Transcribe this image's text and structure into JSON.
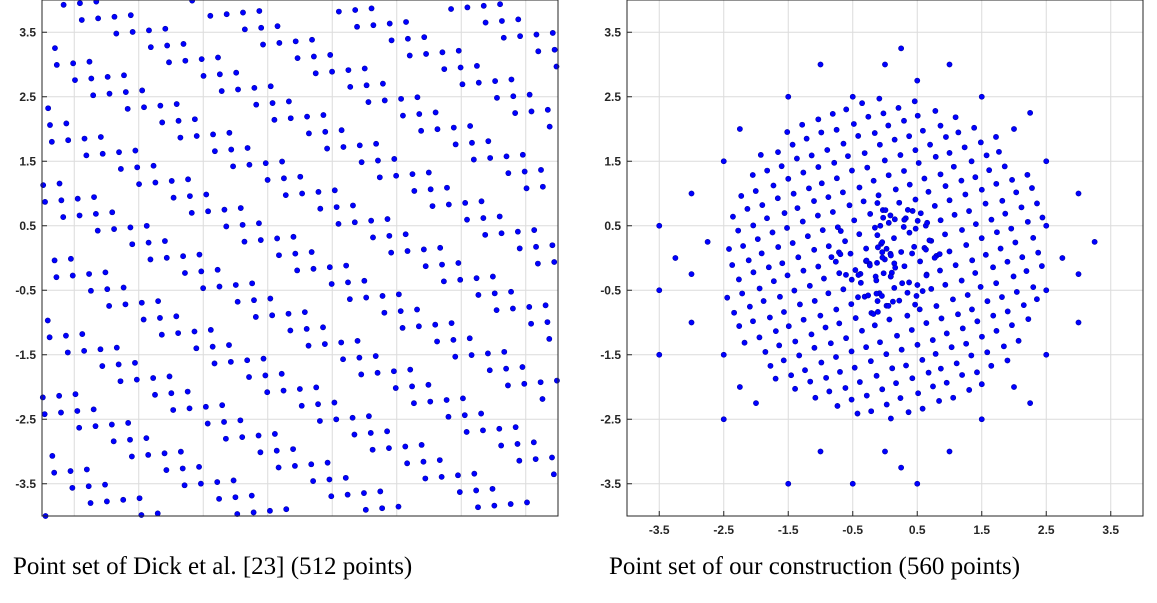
{
  "chart_data": [
    {
      "type": "scatter",
      "caption": "Point set of Dick et al. [23] (512 points)",
      "xlim": [
        -4,
        4
      ],
      "ylim": [
        -4,
        4
      ],
      "xticks": [
        "-3.5",
        "-2.5",
        "-1.5",
        "-0.5",
        "0.5",
        "1.5",
        "2.5",
        "3.5"
      ],
      "yticks": [
        "3.5",
        "2.5",
        "1.5",
        "0.5",
        "-0.5",
        "-1.5",
        "-2.5",
        "-3.5"
      ],
      "xtick_values": [
        -3.5,
        -2.5,
        -1.5,
        -0.5,
        0.5,
        1.5,
        2.5,
        3.5
      ],
      "ytick_values": [
        3.5,
        2.5,
        1.5,
        0.5,
        -0.5,
        -1.5,
        -2.5,
        -3.5
      ],
      "show_xticks": false,
      "grid": true,
      "marker_color": "#0000ff",
      "point_count": 512,
      "points_description": "quasi-uniform lattice filling the square [-4,4]x[-4,4]"
    },
    {
      "type": "scatter",
      "caption": "Point set of our construction (560 points)",
      "xlim": [
        -4,
        4
      ],
      "ylim": [
        -4,
        4
      ],
      "xticks": [
        "-3.5",
        "-2.5",
        "-1.5",
        "-0.5",
        "0.5",
        "1.5",
        "2.5",
        "3.5"
      ],
      "yticks": [
        "3.5",
        "2.5",
        "1.5",
        "0.5",
        "-0.5",
        "-1.5",
        "-2.5",
        "-3.5"
      ],
      "xtick_values": [
        -3.5,
        -2.5,
        -1.5,
        -0.5,
        0.5,
        1.5,
        2.5,
        3.5
      ],
      "ytick_values": [
        3.5,
        2.5,
        1.5,
        0.5,
        -0.5,
        -1.5,
        -2.5,
        -3.5
      ],
      "show_xticks": true,
      "grid": true,
      "marker_color": "#0000ff",
      "point_count": 560,
      "points_description": "points concentrated near the origin, dense core within radius ~2.5 with sparse outliers out to about 3.5",
      "outliers": [
        [
          -3.5,
          0.5
        ],
        [
          -3.5,
          -0.5
        ],
        [
          -3.5,
          -1.5
        ],
        [
          -3.25,
          0.0
        ],
        [
          -3.0,
          1.0
        ],
        [
          -3.0,
          -0.25
        ],
        [
          -3.0,
          -1.0
        ],
        [
          -2.75,
          0.25
        ],
        [
          -2.5,
          1.5
        ],
        [
          -2.5,
          -1.5
        ],
        [
          -2.5,
          -2.5
        ],
        [
          -2.25,
          2.0
        ],
        [
          -2.25,
          -2.0
        ],
        [
          -2.0,
          -2.25
        ],
        [
          -1.5,
          2.5
        ],
        [
          -1.5,
          -3.5
        ],
        [
          -1.0,
          3.0
        ],
        [
          -1.0,
          -3.0
        ],
        [
          -0.5,
          2.5
        ],
        [
          -0.5,
          -3.5
        ],
        [
          0.0,
          3.0
        ],
        [
          0.0,
          -3.0
        ],
        [
          0.25,
          3.25
        ],
        [
          0.25,
          -3.25
        ],
        [
          0.5,
          2.75
        ],
        [
          0.5,
          -3.5
        ],
        [
          1.0,
          3.0
        ],
        [
          1.0,
          -3.0
        ],
        [
          1.5,
          2.5
        ],
        [
          1.5,
          -2.5
        ],
        [
          2.0,
          2.0
        ],
        [
          2.0,
          -2.0
        ],
        [
          2.25,
          2.25
        ],
        [
          2.25,
          -2.25
        ],
        [
          2.5,
          1.5
        ],
        [
          2.5,
          0.5
        ],
        [
          2.5,
          -0.5
        ],
        [
          2.5,
          -1.5
        ],
        [
          2.75,
          0.0
        ],
        [
          3.0,
          1.0
        ],
        [
          3.0,
          -0.25
        ],
        [
          3.0,
          -1.0
        ],
        [
          3.25,
          0.25
        ]
      ]
    }
  ]
}
